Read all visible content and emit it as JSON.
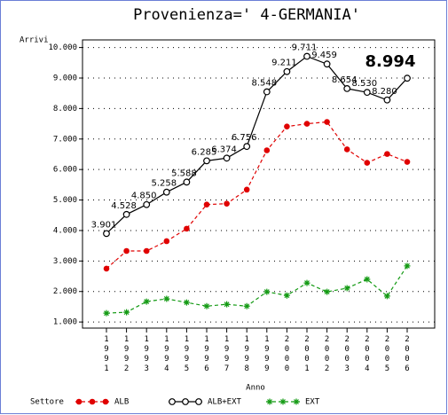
{
  "chart_data": {
    "type": "line",
    "title": "Provenienza=' 4-GERMANIA'",
    "y_label": "Arrivi",
    "x_label": "Anno",
    "legend_title": "Settore",
    "categories": [
      "1991",
      "1992",
      "1993",
      "1994",
      "1995",
      "1996",
      "1997",
      "1998",
      "1999",
      "2000",
      "2001",
      "2002",
      "2003",
      "2004",
      "2005",
      "2006"
    ],
    "series": [
      {
        "name": "ALB",
        "color": "#e00000",
        "dash": true,
        "marker": "dot",
        "values": [
          2750,
          3330,
          3330,
          3650,
          4060,
          4850,
          4880,
          5340,
          6630,
          7410,
          7500,
          7560,
          6660,
          6220,
          6510,
          6250
        ]
      },
      {
        "name": "ALB+EXT",
        "color": "#000000",
        "dash": false,
        "marker": "circle",
        "values": [
          3901,
          4528,
          4850,
          5258,
          5588,
          6285,
          6374,
          6756,
          8548,
          9211,
          9711,
          9459,
          8654,
          8530,
          8280,
          8994
        ],
        "value_labels": [
          "3.901",
          "4.528",
          "4.850",
          "5.258",
          "5.588",
          "6.285",
          "6.374",
          "6.756",
          "8.548",
          "9.211",
          "9.711",
          "9.459",
          "8.654",
          "8.530",
          "8.280",
          null
        ]
      },
      {
        "name": "EXT",
        "color": "#139a13",
        "dash": true,
        "marker": "star",
        "values": [
          1290,
          1320,
          1670,
          1760,
          1640,
          1520,
          1580,
          1520,
          1990,
          1870,
          2280,
          1990,
          2110,
          2400,
          1850,
          2840
        ]
      }
    ],
    "annotation": "8.994",
    "ylim": [
      800,
      10250
    ],
    "yticks": [
      {
        "value": 1000,
        "label": "1.000"
      },
      {
        "value": 2000,
        "label": "2.000"
      },
      {
        "value": 3000,
        "label": "3.000"
      },
      {
        "value": 4000,
        "label": "4.000"
      },
      {
        "value": 5000,
        "label": "5.000"
      },
      {
        "value": 6000,
        "label": "6.000"
      },
      {
        "value": 7000,
        "label": "7.000"
      },
      {
        "value": 8000,
        "label": "8.000"
      },
      {
        "value": 9000,
        "label": "9.000"
      },
      {
        "value": 10000,
        "label": "10.000"
      }
    ],
    "grid": true
  }
}
